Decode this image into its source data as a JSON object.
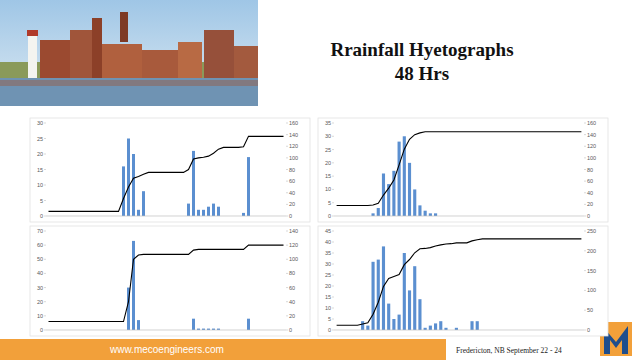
{
  "slide": {
    "title": [
      "Rrainfall Hyetographs",
      "48 Hrs"
    ],
    "website": "www.mecoengineers.com",
    "footer": "Fredericton, NB September 22 - 24"
  },
  "chart_data": [
    {
      "type": "bar",
      "tick_labels": "y",
      "grid": false,
      "categories": [
        null,
        null,
        null,
        null,
        null,
        null,
        null,
        null,
        null,
        null,
        null,
        null,
        null,
        null,
        null,
        null,
        null,
        null,
        null,
        null,
        null,
        null,
        null,
        null,
        null,
        null,
        null,
        null,
        null,
        null,
        null,
        null,
        null,
        null,
        null,
        null,
        null,
        null,
        null,
        null,
        null,
        null,
        null,
        null,
        null,
        null,
        null,
        null
      ],
      "ylim": [
        0,
        30
      ],
      "yticks": [
        0,
        5,
        10,
        15,
        20,
        25,
        30
      ],
      "y2lim": [
        0,
        160
      ],
      "y2ticks": [
        0,
        20,
        40,
        60,
        80,
        100,
        120,
        140,
        160
      ],
      "series": [
        {
          "type": "bar",
          "color": "#5b8fd0",
          "values": [
            0,
            0,
            0,
            0,
            0,
            0,
            0,
            0,
            0,
            0,
            0,
            0,
            0,
            0,
            0,
            16,
            25,
            20,
            2,
            8,
            0,
            0,
            0,
            0,
            0,
            0,
            0,
            0,
            4,
            21,
            2,
            2,
            3,
            4,
            3,
            0,
            0,
            0,
            0,
            1,
            19,
            0,
            0,
            0,
            0,
            0,
            0,
            0
          ]
        },
        {
          "type": "line",
          "axis": "y2",
          "color": "#000000",
          "values": [
            8,
            8,
            8,
            8,
            8,
            8,
            8,
            8,
            8,
            8,
            8,
            8,
            8,
            8,
            8,
            30,
            50,
            65,
            68,
            72,
            75,
            75,
            75,
            75,
            75,
            75,
            75,
            75,
            80,
            98,
            100,
            101,
            103,
            108,
            115,
            118,
            118,
            118,
            118,
            119,
            137,
            137,
            137,
            137,
            137,
            137,
            137,
            137
          ]
        }
      ]
    },
    {
      "type": "bar",
      "tick_labels": "y",
      "grid": false,
      "categories": [
        null,
        null,
        null,
        null,
        null,
        null,
        null,
        null,
        null,
        null,
        null,
        null,
        null,
        null,
        null,
        null,
        null,
        null,
        null,
        null,
        null,
        null,
        null,
        null,
        null,
        null,
        null,
        null,
        null,
        null,
        null,
        null,
        null,
        null,
        null,
        null,
        null,
        null,
        null,
        null,
        null,
        null,
        null,
        null,
        null,
        null,
        null,
        null
      ],
      "ylim": [
        0,
        35
      ],
      "yticks": [
        0,
        5,
        10,
        15,
        20,
        25,
        30,
        35
      ],
      "y2lim": [
        0,
        160
      ],
      "y2ticks": [
        0,
        20,
        40,
        60,
        80,
        100,
        120,
        140,
        160
      ],
      "series": [
        {
          "type": "bar",
          "color": "#5b8fd0",
          "values": [
            0,
            0,
            0,
            0,
            0,
            0,
            0,
            1,
            3,
            16,
            12,
            17,
            28,
            30,
            20,
            10,
            4,
            2,
            1,
            1,
            0,
            0,
            0,
            0,
            0,
            0,
            0,
            0,
            0,
            0,
            0,
            0,
            0,
            0,
            0,
            0,
            0,
            0,
            0,
            0,
            0,
            0,
            0,
            0,
            0,
            0,
            0,
            0
          ]
        },
        {
          "type": "line",
          "axis": "y2",
          "color": "#000000",
          "values": [
            18,
            18,
            18,
            18,
            18,
            18,
            18,
            19,
            22,
            36,
            48,
            62,
            88,
            115,
            132,
            140,
            143,
            145,
            145,
            145,
            145,
            145,
            145,
            145,
            145,
            145,
            145,
            145,
            145,
            145,
            145,
            145,
            145,
            145,
            145,
            145,
            145,
            145,
            145,
            145,
            145,
            145,
            145,
            145,
            145,
            145,
            145,
            145
          ]
        }
      ]
    },
    {
      "type": "bar",
      "tick_labels": "y",
      "grid": false,
      "categories": [
        null,
        null,
        null,
        null,
        null,
        null,
        null,
        null,
        null,
        null,
        null,
        null,
        null,
        null,
        null,
        null,
        null,
        null,
        null,
        null,
        null,
        null,
        null,
        null,
        null,
        null,
        null,
        null,
        null,
        null,
        null,
        null,
        null,
        null,
        null,
        null,
        null,
        null,
        null,
        null,
        null,
        null,
        null,
        null,
        null,
        null,
        null,
        null
      ],
      "ylim": [
        0,
        70
      ],
      "yticks": [
        0,
        10,
        20,
        30,
        40,
        50,
        60,
        70
      ],
      "y2lim": [
        0,
        140
      ],
      "y2ticks": [
        0,
        20,
        40,
        60,
        80,
        100,
        120,
        140
      ],
      "series": [
        {
          "type": "bar",
          "color": "#5b8fd0",
          "values": [
            0,
            0,
            0,
            0,
            0,
            0,
            0,
            0,
            0,
            0,
            0,
            0,
            0,
            0,
            0,
            0,
            30,
            63,
            7,
            0,
            0,
            0,
            0,
            0,
            0,
            0,
            0,
            0,
            0,
            8,
            1,
            1,
            1,
            1,
            1,
            0,
            0,
            0,
            0,
            0,
            8,
            0,
            0,
            0,
            0,
            0,
            0,
            0
          ]
        },
        {
          "type": "line",
          "axis": "y2",
          "color": "#000000",
          "values": [
            12,
            12,
            12,
            12,
            12,
            12,
            12,
            12,
            12,
            12,
            12,
            12,
            12,
            12,
            12,
            12,
            40,
            100,
            106,
            107,
            107,
            107,
            107,
            107,
            107,
            107,
            107,
            107,
            107,
            113,
            114,
            114,
            114,
            114,
            114,
            114,
            114,
            114,
            114,
            114,
            120,
            120,
            120,
            120,
            120,
            120,
            120,
            120
          ]
        }
      ]
    },
    {
      "type": "bar",
      "tick_labels": "y",
      "grid": false,
      "categories": [
        null,
        null,
        null,
        null,
        null,
        null,
        null,
        null,
        null,
        null,
        null,
        null,
        null,
        null,
        null,
        null,
        null,
        null,
        null,
        null,
        null,
        null,
        null,
        null,
        null,
        null,
        null,
        null,
        null,
        null,
        null,
        null,
        null,
        null,
        null,
        null,
        null,
        null,
        null,
        null,
        null,
        null,
        null,
        null,
        null,
        null,
        null,
        null
      ],
      "ylim": [
        0,
        45
      ],
      "yticks": [
        0,
        5,
        10,
        15,
        20,
        25,
        30,
        35,
        40,
        45
      ],
      "y2lim": [
        0,
        250
      ],
      "y2ticks": [
        0,
        50,
        100,
        150,
        200,
        250
      ],
      "series": [
        {
          "type": "bar",
          "color": "#5b8fd0",
          "values": [
            0,
            0,
            0,
            0,
            0,
            4,
            2,
            31,
            32,
            38,
            12,
            5,
            7,
            35,
            18,
            29,
            14,
            1,
            2,
            3,
            4,
            1,
            0,
            1,
            0,
            0,
            4,
            4,
            0,
            0,
            0,
            0,
            0,
            0,
            0,
            0,
            0,
            0,
            0,
            0,
            0,
            0,
            0,
            0,
            0,
            0,
            0,
            0
          ]
        },
        {
          "type": "line",
          "axis": "y2",
          "color": "#000000",
          "values": [
            12,
            12,
            12,
            12,
            12,
            15,
            18,
            40,
            70,
            110,
            130,
            135,
            140,
            165,
            178,
            195,
            205,
            206,
            208,
            212,
            215,
            217,
            218,
            220,
            220,
            220,
            225,
            228,
            230,
            230,
            230,
            230,
            230,
            230,
            230,
            230,
            230,
            230,
            230,
            230,
            230,
            230,
            230,
            230,
            230,
            230,
            230,
            230
          ]
        }
      ]
    }
  ]
}
